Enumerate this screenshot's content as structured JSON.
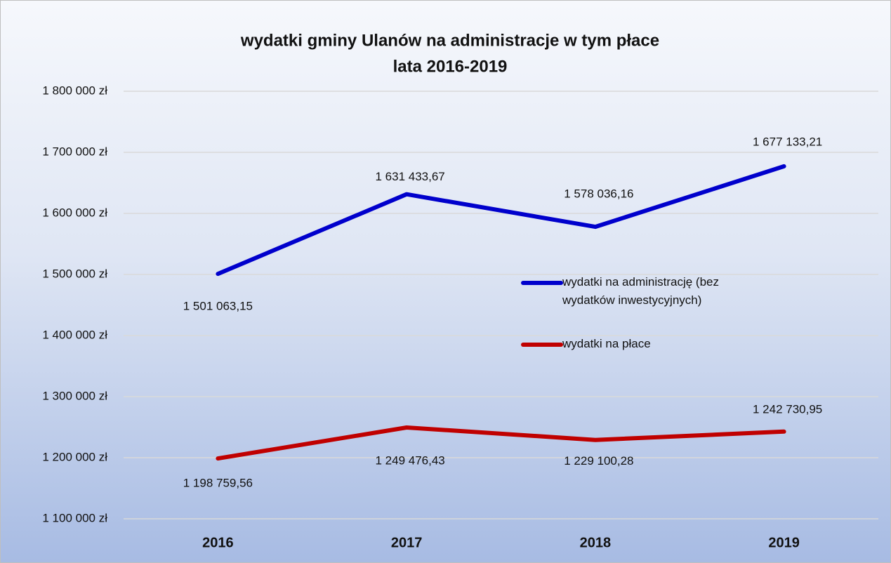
{
  "chart_data": {
    "type": "line",
    "title": [
      "wydatki gminy Ulanów na administracje w tym płace",
      "lata 2016-2019"
    ],
    "categories": [
      "2016",
      "2017",
      "2018",
      "2019"
    ],
    "series": [
      {
        "name": "wydatki na administrację (bez wydatków inwestycyjnych)",
        "color": "#0000cc",
        "values": [
          1501063.15,
          1631433.67,
          1578036.16,
          1677133.21
        ],
        "value_labels": [
          "1 501 063,15",
          "1 631 433,67",
          "1 578 036,16",
          "1 677 133,21"
        ]
      },
      {
        "name": "wydatki na płace",
        "color": "#c00000",
        "values": [
          1198759.56,
          1249476.43,
          1229100.28,
          1242730.95
        ],
        "value_labels": [
          "1 198 759,56",
          "1 249 476,43",
          "1 229 100,28",
          "1 242 730,95"
        ]
      }
    ],
    "ylim": [
      1100000,
      1800000
    ],
    "yticks": [
      {
        "value": 1100000,
        "label": "1 100 000 zł"
      },
      {
        "value": 1200000,
        "label": "1 200 000 zł"
      },
      {
        "value": 1300000,
        "label": "1 300 000 zł"
      },
      {
        "value": 1400000,
        "label": "1 400 000 zł"
      },
      {
        "value": 1500000,
        "label": "1 500 000 zł"
      },
      {
        "value": 1600000,
        "label": "1 600 000 zł"
      },
      {
        "value": 1700000,
        "label": "1 700 000 zł"
      },
      {
        "value": 1800000,
        "label": "1 800 000 zł"
      }
    ],
    "grid": true
  }
}
